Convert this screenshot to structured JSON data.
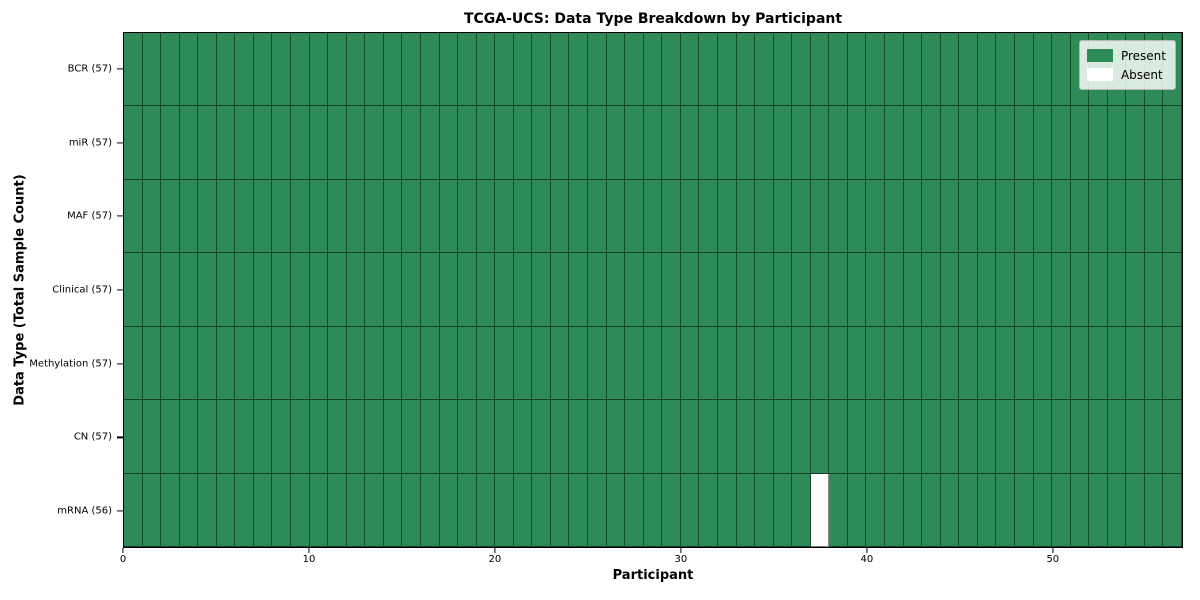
{
  "chart_data": {
    "type": "heatmap",
    "title": "TCGA-UCS: Data Type Breakdown by Participant",
    "xlabel": "Participant",
    "ylabel": "Data Type (Total Sample Count)",
    "x_range": [
      0,
      57
    ],
    "x_ticks": [
      0,
      10,
      20,
      30,
      40,
      50
    ],
    "n_participants": 57,
    "rows": [
      {
        "label": "BCR (57)",
        "data_type": "BCR",
        "present_count": 57,
        "absent_participants": []
      },
      {
        "label": "miR (57)",
        "data_type": "miR",
        "present_count": 57,
        "absent_participants": []
      },
      {
        "label": "MAF (57)",
        "data_type": "MAF",
        "present_count": 57,
        "absent_participants": []
      },
      {
        "label": "Clinical (57)",
        "data_type": "Clinical",
        "present_count": 57,
        "absent_participants": []
      },
      {
        "label": "Methylation (57)",
        "data_type": "Methylation",
        "present_count": 57,
        "absent_participants": []
      },
      {
        "label": "CN (57)",
        "data_type": "CN",
        "present_count": 57,
        "absent_participants": []
      },
      {
        "label": "mRNA (56)",
        "data_type": "mRNA",
        "present_count": 56,
        "absent_participants": [
          37
        ]
      }
    ],
    "legend": {
      "position": "upper right",
      "entries": [
        {
          "label": "Present",
          "color": "#2e8b57"
        },
        {
          "label": "Absent",
          "color": "#ffffff"
        }
      ]
    },
    "colors": {
      "present": "#2e8b57",
      "absent": "#ffffff",
      "cell_edge": "rgba(0,0,0,0.45)",
      "axes_frame": "#000000",
      "background": "#ffffff"
    },
    "grid": "cell-borders",
    "legend_visible": true
  }
}
